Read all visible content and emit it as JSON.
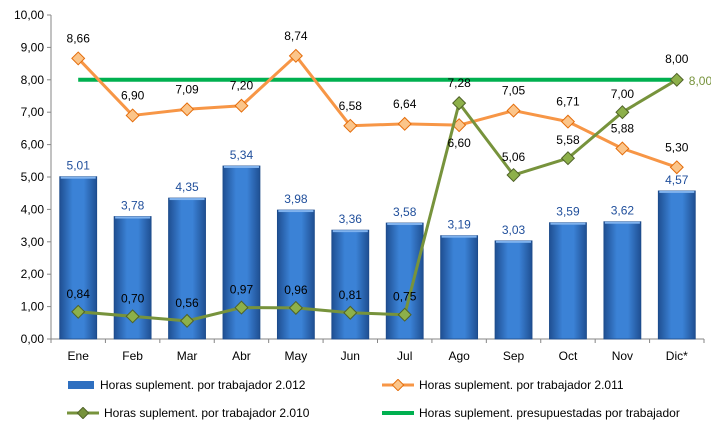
{
  "chart_data": {
    "type": "bar",
    "categories": [
      "Ene",
      "Feb",
      "Mar",
      "Abr",
      "May",
      "Jun",
      "Jul",
      "Ago",
      "Sep",
      "Oct",
      "Nov",
      "Dic*"
    ],
    "y_ticks": [
      "0,00",
      "1,00",
      "2,00",
      "3,00",
      "4,00",
      "5,00",
      "6,00",
      "7,00",
      "8,00",
      "9,00",
      "10,00"
    ],
    "ylim": [
      0,
      10
    ],
    "grid": false,
    "legend_position": "bottom",
    "series": [
      {
        "name": "Horas suplement. por trabajador 2.012",
        "kind": "bar",
        "color": "#2e6fc0",
        "values": [
          5.01,
          3.78,
          4.35,
          5.34,
          3.98,
          3.36,
          3.58,
          3.19,
          3.03,
          3.59,
          3.62,
          4.57
        ],
        "labels": [
          "5,01",
          "3,78",
          "4,35",
          "5,34",
          "3,98",
          "3,36",
          "3,58",
          "3,19",
          "3,03",
          "3,59",
          "3,62",
          "4,57"
        ]
      },
      {
        "name": "Horas suplement. por trabajador 2.011",
        "kind": "line",
        "color": "#f79646",
        "values": [
          8.66,
          6.9,
          7.09,
          7.2,
          8.74,
          6.58,
          6.64,
          6.6,
          7.05,
          6.71,
          5.88,
          5.3
        ],
        "labels": [
          "8,66",
          "6,90",
          "7,09",
          "7,20",
          "8,74",
          "6,58",
          "6,64",
          "6,60",
          "7,05",
          "6,71",
          "5,88",
          "5,30"
        ]
      },
      {
        "name": "Horas suplement. por trabajador 2.010",
        "kind": "line",
        "color": "#77933c",
        "values": [
          0.84,
          0.7,
          0.56,
          0.97,
          0.96,
          0.81,
          0.75,
          7.28,
          5.06,
          5.58,
          7.0,
          8.0
        ],
        "labels": [
          "0,84",
          "0,70",
          "0,56",
          "0,97",
          "0,96",
          "0,81",
          "0,75",
          "7,28",
          "5,06",
          "5,58",
          "7,00",
          "8,00"
        ]
      },
      {
        "name": "Horas suplement. presupuestadas por trabajador",
        "kind": "line",
        "color": "#00b050",
        "values": [
          8.0,
          8.0,
          8.0,
          8.0,
          8.0,
          8.0,
          8.0,
          8.0,
          8.0,
          8.0,
          8.0,
          8.0
        ],
        "end_label": "8,00"
      }
    ]
  }
}
